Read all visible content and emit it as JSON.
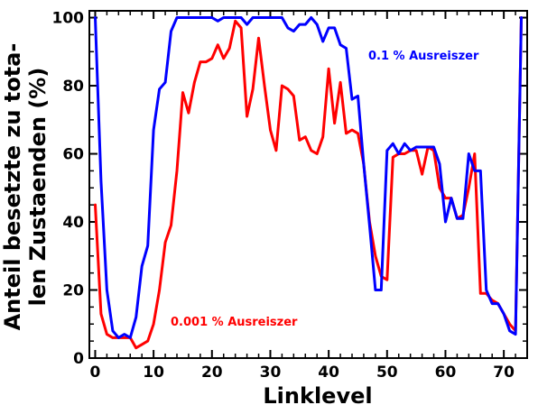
{
  "chart_data": {
    "type": "line",
    "xlabel": "Linklevel",
    "ylabel_lines": [
      "Anteil besetzte zu tota-",
      "len Zustaenden (%)"
    ],
    "xlim": [
      -1,
      74
    ],
    "ylim": [
      0,
      102
    ],
    "x_ticks": [
      0,
      10,
      20,
      30,
      40,
      50,
      60,
      70
    ],
    "y_ticks": [
      0,
      20,
      40,
      60,
      80,
      100
    ],
    "x_minor_step": 2,
    "y_minor_step": 5,
    "grid": false,
    "series": [
      {
        "name": "0.1 % Ausreiszer",
        "color": "#0000ff",
        "x": [
          0,
          1,
          2,
          3,
          4,
          5,
          6,
          7,
          8,
          9,
          10,
          11,
          12,
          13,
          14,
          15,
          16,
          17,
          18,
          19,
          20,
          21,
          22,
          23,
          24,
          25,
          26,
          27,
          28,
          29,
          30,
          31,
          32,
          33,
          34,
          35,
          36,
          37,
          38,
          39,
          40,
          41,
          42,
          43,
          44,
          45,
          46,
          47,
          48,
          49,
          50,
          51,
          52,
          53,
          54,
          55,
          56,
          57,
          58,
          59,
          60,
          61,
          62,
          63,
          64,
          65,
          66,
          67,
          68,
          69,
          70,
          71,
          72,
          73
        ],
        "values": [
          100,
          52,
          20,
          8,
          6,
          7,
          6,
          12,
          27,
          33,
          67,
          79,
          81,
          96,
          100,
          100,
          100,
          100,
          100,
          100,
          100,
          99,
          100,
          100,
          100,
          100,
          98,
          100,
          100,
          100,
          100,
          100,
          100,
          97,
          96,
          98,
          98,
          100,
          98,
          93,
          97,
          97,
          92,
          91,
          76,
          77,
          57,
          39,
          20,
          20,
          61,
          63,
          60,
          63,
          61,
          62,
          62,
          62,
          62,
          57,
          40,
          47,
          41,
          41,
          60,
          55,
          55,
          20,
          16,
          16,
          13,
          8,
          7,
          100
        ]
      },
      {
        "name": "0.001 % Ausreiszer",
        "color": "#ff0000",
        "x": [
          0,
          1,
          2,
          3,
          4,
          5,
          6,
          7,
          8,
          9,
          10,
          11,
          12,
          13,
          14,
          15,
          16,
          17,
          18,
          19,
          20,
          21,
          22,
          23,
          24,
          25,
          26,
          27,
          28,
          29,
          30,
          31,
          32,
          33,
          34,
          35,
          36,
          37,
          38,
          39,
          40,
          41,
          42,
          43,
          44,
          45,
          46,
          47,
          48,
          49,
          50,
          51,
          52,
          53,
          54,
          55,
          56,
          57,
          58,
          59,
          60,
          61,
          62,
          63,
          64,
          65,
          66,
          67,
          68,
          69,
          70,
          71,
          72,
          73
        ],
        "values": [
          45,
          13,
          7,
          6,
          6,
          6,
          6,
          3,
          4,
          5,
          10,
          20,
          34,
          39,
          55,
          78,
          72,
          81,
          87,
          87,
          88,
          92,
          88,
          91,
          99,
          97,
          71,
          79,
          94,
          80,
          67,
          61,
          80,
          79,
          77,
          64,
          65,
          61,
          60,
          65,
          85,
          69,
          81,
          66,
          67,
          66,
          57,
          40,
          30,
          24,
          23,
          59,
          60,
          60,
          61,
          61,
          54,
          62,
          61,
          50,
          47,
          47,
          41,
          42,
          50,
          60,
          19,
          19,
          17,
          16,
          13,
          10,
          8,
          100
        ]
      }
    ],
    "annotations": [
      {
        "text": "0.1 % Ausreiszer",
        "color": "#0000ff"
      },
      {
        "text": "0.001 % Ausreiszer",
        "color": "#ff0000"
      }
    ]
  }
}
